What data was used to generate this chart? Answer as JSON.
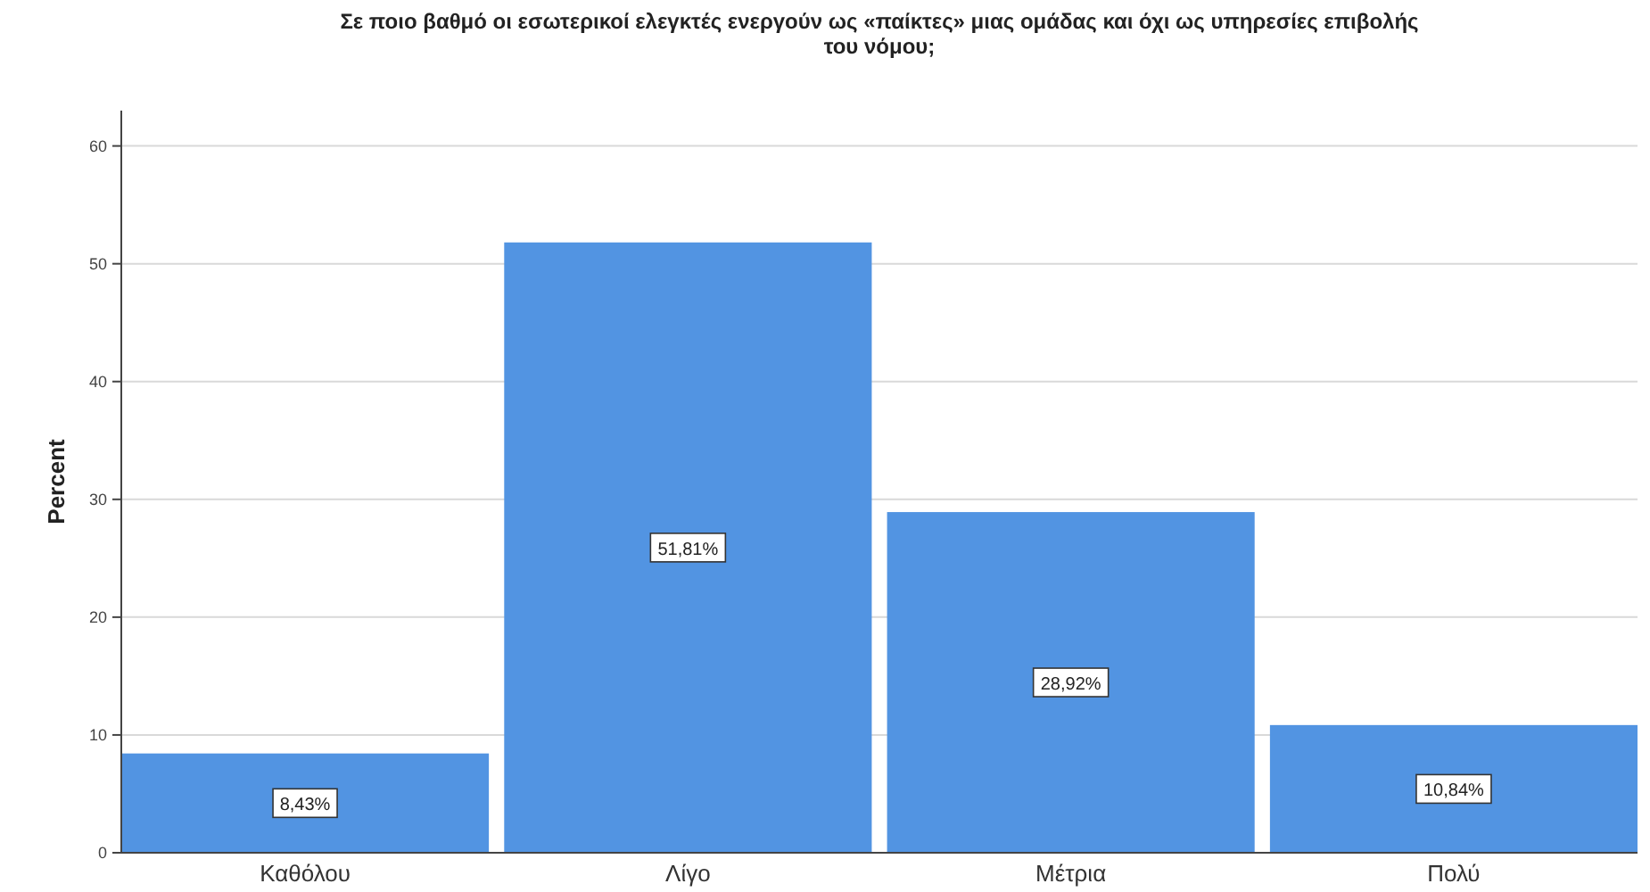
{
  "chart_data": {
    "type": "bar",
    "title": "Σε ποιο βαθμό οι εσωτερικοί ελεγκτές ενεργούν ως «παίκτες» μιας ομάδας και όχι ως υπηρεσίες επιβολής του νόμου;",
    "ylabel": "Percent",
    "categories": [
      "Καθόλου",
      "Λίγο",
      "Μέτρια",
      "Πολύ"
    ],
    "values": [
      8.43,
      51.81,
      28.92,
      10.84
    ],
    "value_labels": [
      "8,43%",
      "51,81%",
      "28,92%",
      "10,84%"
    ],
    "color": "#5294e2",
    "ylim": [
      0,
      63
    ],
    "yticks": [
      0,
      10,
      20,
      30,
      40,
      50,
      60
    ],
    "grid": "y"
  }
}
